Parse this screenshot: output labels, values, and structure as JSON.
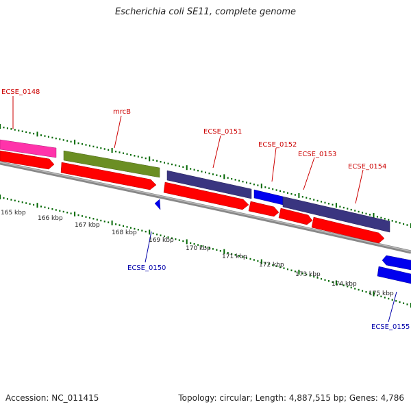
{
  "title": "Escherichia coli SE11, complete genome",
  "accession": "Accession: NC_011415",
  "topology": "Topology: circular; Length: 4,887,515 bp; Genes: 4,786",
  "colors": {
    "cds": "#ff0000",
    "gene_pink": "#ff33aa",
    "gene_olive": "#6b8e23",
    "gene_purple": "#3a3580",
    "gene_blue": "#0000ee",
    "tick": "#006600",
    "backbone": "#888888",
    "label_red": "#cc0000",
    "label_blue": "#0000aa"
  },
  "kbp_ticks": [
    "165 kbp",
    "166 kbp",
    "167 kbp",
    "168 kbp",
    "169 kbp",
    "170 kbp",
    "171 kbp",
    "172 kbp",
    "173 kbp",
    "174 kbp",
    "175 kbp"
  ],
  "gene_labels": {
    "ecse0148": "ECSE_0148",
    "mrcb": "mrcB",
    "ecse0151": "ECSE_0151",
    "ecse0152": "ECSE_0152",
    "ecse0153": "ECSE_0153",
    "ecse0154": "ECSE_0154",
    "ecse0150": "ECSE_0150",
    "ecse0155": "ECSE_0155"
  }
}
